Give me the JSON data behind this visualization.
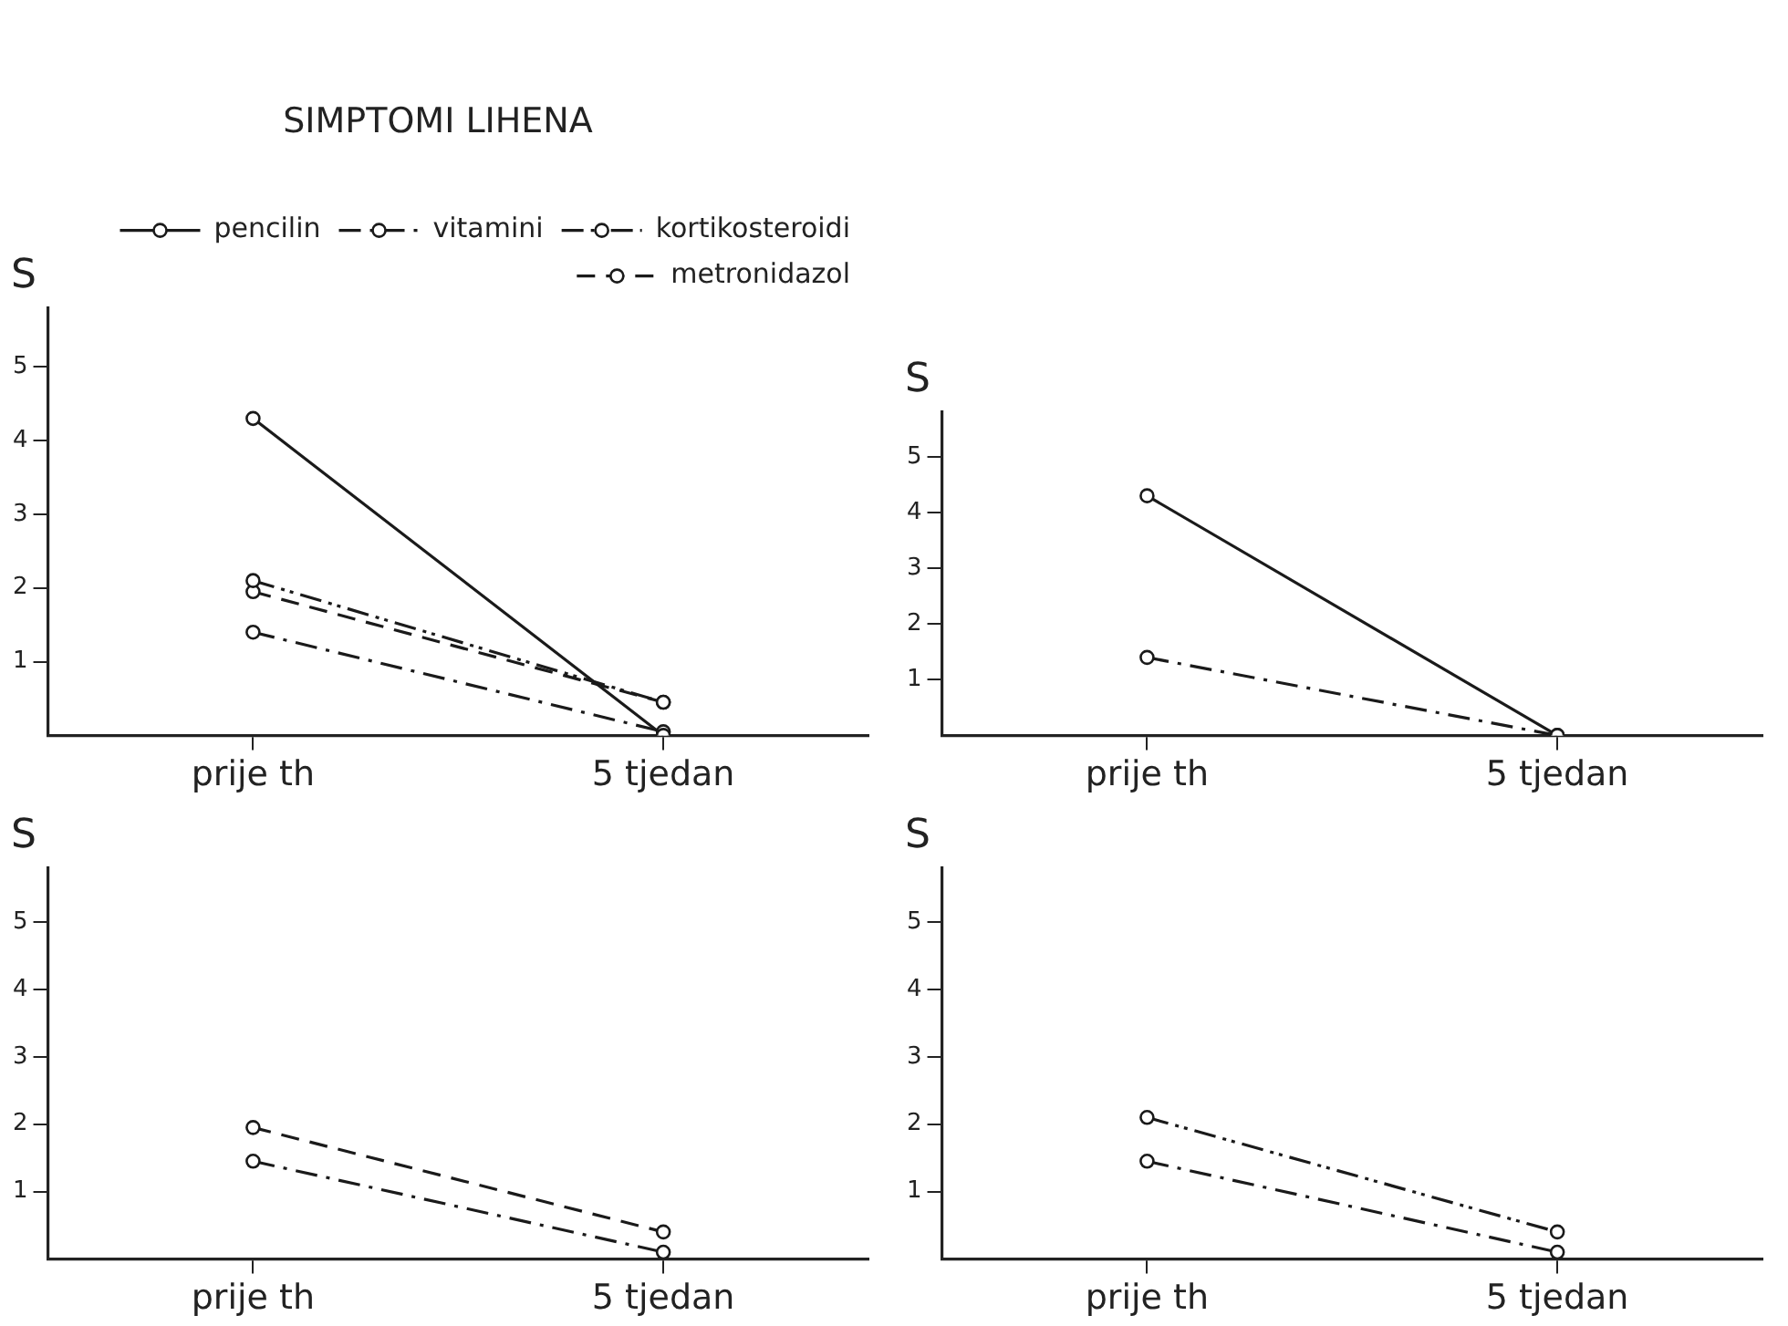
{
  "chart_data": [
    {
      "type": "line",
      "title": "SIMPTOMI LIHENA",
      "ylabel": "S",
      "categories": [
        "prije th",
        "5 tjedan"
      ],
      "ylim": [
        0,
        5.8
      ],
      "yticks": [
        1,
        2,
        3,
        4,
        5
      ],
      "grid": false,
      "legend": "top right",
      "marker": "circle",
      "series": [
        {
          "name": "pencilin",
          "color": "#1a1a1a",
          "line_style": "solid",
          "values": [
            4.3,
            0
          ]
        },
        {
          "name": "vitamini",
          "color": "#1a1a1a",
          "line_style": "dashdot",
          "values": [
            1.4,
            0.05
          ]
        },
        {
          "name": "kortikosteroidi",
          "color": "#1a1a1a",
          "line_style": "dashdotdot",
          "values": [
            2.1,
            0.45
          ]
        },
        {
          "name": "metronidazol",
          "color": "#1a1a1a",
          "line_style": "dashed",
          "values": [
            1.95,
            0.45
          ]
        }
      ]
    },
    {
      "type": "line",
      "ylabel": "S",
      "categories": [
        "prije th",
        "5 tjedan"
      ],
      "ylim": [
        0,
        5.8
      ],
      "yticks": [
        1,
        2,
        3,
        4,
        5
      ],
      "grid": false,
      "marker": "circle",
      "series": [
        {
          "color": "#1a1a1a",
          "line_style": "solid",
          "values": [
            4.3,
            0
          ]
        },
        {
          "color": "#1a1a1a",
          "line_style": "dashdot",
          "values": [
            1.4,
            0
          ]
        }
      ]
    },
    {
      "type": "line",
      "ylabel": "S",
      "categories": [
        "prije th",
        "5 tjedan"
      ],
      "ylim": [
        0,
        5.8
      ],
      "yticks": [
        1,
        2,
        3,
        4,
        5
      ],
      "grid": false,
      "marker": "circle",
      "series": [
        {
          "color": "#1a1a1a",
          "line_style": "dashdot",
          "values": [
            1.45,
            0.1
          ]
        },
        {
          "color": "#1a1a1a",
          "line_style": "dashed",
          "values": [
            1.95,
            0.4
          ]
        }
      ]
    },
    {
      "type": "line",
      "ylabel": "S",
      "categories": [
        "prije th",
        "5 tjedan"
      ],
      "ylim": [
        0,
        5.8
      ],
      "yticks": [
        1,
        2,
        3,
        4,
        5
      ],
      "grid": false,
      "marker": "circle",
      "series": [
        {
          "color": "#1a1a1a",
          "line_style": "dashdot",
          "values": [
            1.45,
            0.1
          ]
        },
        {
          "color": "#1a1a1a",
          "line_style": "dashdotdot",
          "values": [
            2.1,
            0.4
          ]
        }
      ]
    }
  ]
}
